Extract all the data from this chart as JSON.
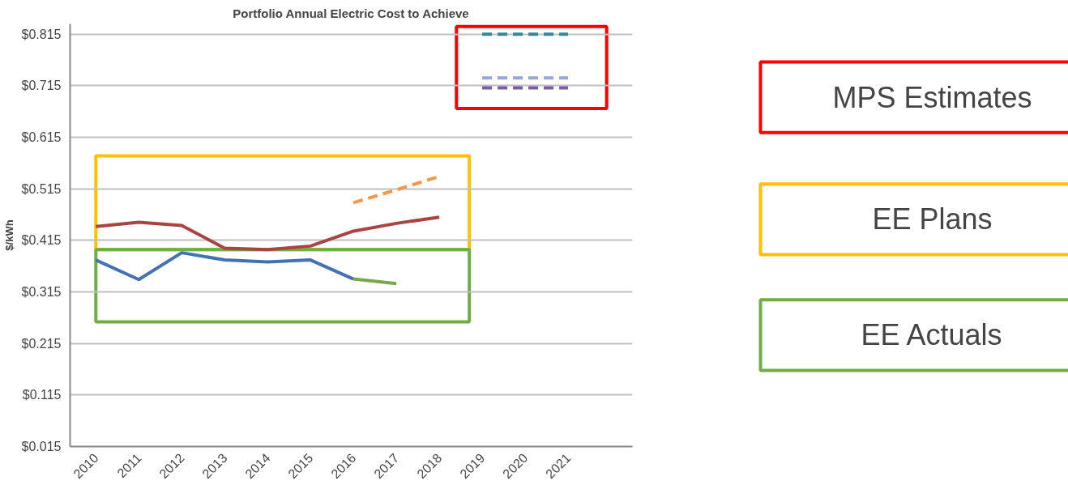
{
  "chart_data": [
    {
      "type": "line",
      "title": "Portfolio Annual Electric Cost to Achieve",
      "ylabel": "$/kWh",
      "categories": [
        "2010",
        "2011",
        "2012",
        "2013",
        "2014",
        "2015",
        "2016",
        "2017",
        "2018",
        "2019",
        "2020",
        "2021"
      ],
      "ylim": [
        0.015,
        0.835
      ],
      "yticks": [
        {
          "value": 0.015,
          "label": "$0.015"
        },
        {
          "value": 0.115,
          "label": "$0.115"
        },
        {
          "value": 0.215,
          "label": "$0.215"
        },
        {
          "value": 0.315,
          "label": "$0.315"
        },
        {
          "value": 0.415,
          "label": "$0.415"
        },
        {
          "value": 0.515,
          "label": "$0.515"
        },
        {
          "value": 0.615,
          "label": "$0.615"
        },
        {
          "value": 0.715,
          "label": "$0.715"
        },
        {
          "value": 0.815,
          "label": "$0.815"
        }
      ],
      "grid": "y",
      "marker": "none",
      "series": [
        {
          "color": "#a94442",
          "line_style": "solid",
          "values": [
            0.442,
            0.45,
            0.444,
            0.4,
            0.397,
            0.404,
            0.433,
            0.448,
            0.46,
            null,
            null,
            null
          ]
        },
        {
          "color": "#4472b0",
          "line_style": "solid",
          "values": [
            0.377,
            0.339,
            0.391,
            0.377,
            0.373,
            0.377,
            0.34,
            null,
            null,
            null,
            null,
            null
          ]
        },
        {
          "color": "#77a94a",
          "line_style": "solid",
          "values": [
            null,
            null,
            null,
            null,
            null,
            null,
            0.34,
            0.331,
            null,
            null,
            null,
            null
          ]
        },
        {
          "color": "#f79646",
          "line_style": "dashed",
          "values": [
            null,
            null,
            null,
            null,
            null,
            null,
            0.488,
            0.513,
            0.539,
            null,
            null,
            null
          ]
        },
        {
          "color": "#31899d",
          "line_style": "dashed",
          "values": [
            null,
            null,
            null,
            null,
            null,
            null,
            null,
            null,
            null,
            0.815,
            0.815,
            0.815
          ]
        },
        {
          "color": "#95a8d6",
          "line_style": "dashed",
          "values": [
            null,
            null,
            null,
            null,
            null,
            null,
            null,
            null,
            null,
            0.73,
            0.73,
            0.73
          ]
        },
        {
          "color": "#7d5ba6",
          "line_style": "dashed",
          "values": [
            null,
            null,
            null,
            null,
            null,
            null,
            null,
            null,
            null,
            0.711,
            0.711,
            0.711
          ]
        }
      ]
    },
    {
      "type": "other",
      "annotations": [
        "MPS Estimates",
        "EE Plans",
        "EE Actuals"
      ],
      "colors": [
        "#ff0000",
        "#ffc000",
        "#70ad47"
      ]
    }
  ]
}
